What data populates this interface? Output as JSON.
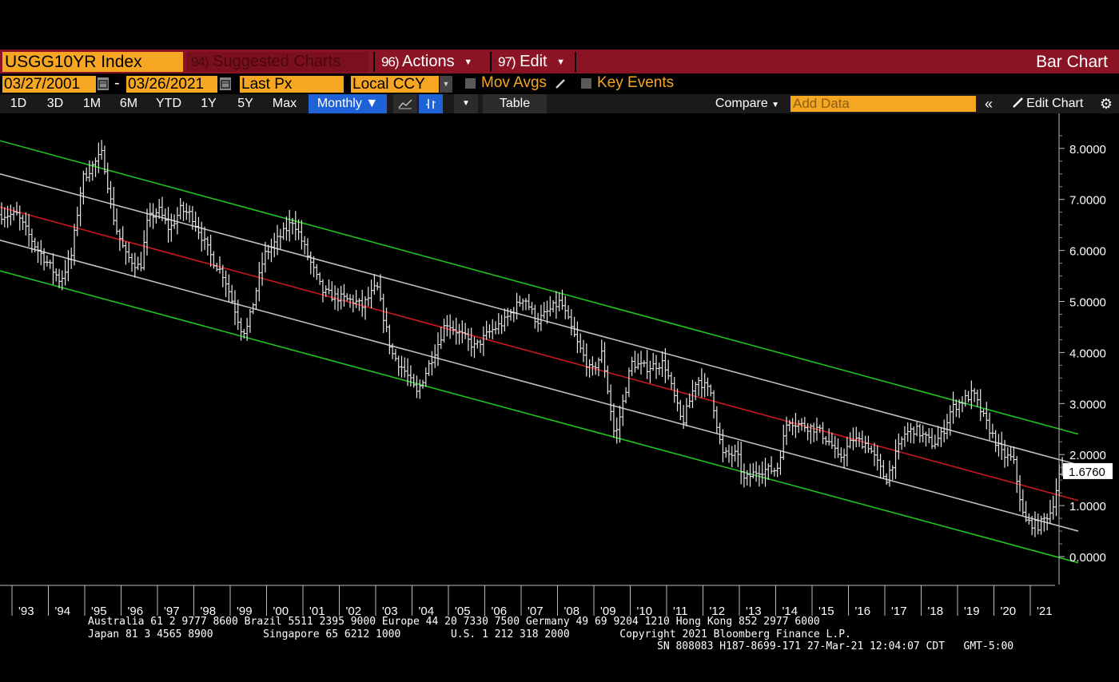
{
  "toolbar": {
    "ticker": "USGG10YR Index",
    "suggested_num": "94)",
    "suggested_label": "Suggested Charts",
    "actions_num": "96)",
    "actions_label": "Actions",
    "edit_num": "97)",
    "edit_label": "Edit",
    "chart_type": "Bar Chart"
  },
  "settings": {
    "start_date": "03/27/2001",
    "date_separator": "-",
    "end_date": "03/26/2021",
    "field": "Last Px",
    "currency": "Local CCY",
    "mov_avgs": "Mov Avgs",
    "key_events": "Key Events"
  },
  "periods": [
    "1D",
    "3D",
    "1M",
    "6M",
    "YTD",
    "1Y",
    "5Y",
    "Max"
  ],
  "frequency": "Monthly",
  "table_label": "Table",
  "compare_label": "Compare",
  "add_data_placeholder": "Add Data",
  "edit_chart_label": "Edit Chart",
  "colors": {
    "accent_orange": "#f5a623",
    "menu_red": "#8a1424",
    "active_blue": "#1f62d8",
    "channel_green": "#1fc21f",
    "regression_red": "#c8181e",
    "band_white": "#bfbfbf"
  },
  "chart_data": {
    "type": "bar",
    "y_ticks": [
      "0.0000",
      "1.0000",
      "2.0000",
      "3.0000",
      "4.0000",
      "5.0000",
      "6.0000",
      "7.0000",
      "8.0000"
    ],
    "ylim": [
      -0.35,
      8.6
    ],
    "x_labels": [
      "'93",
      "'94",
      "'95",
      "'96",
      "'97",
      "'98",
      "'99",
      "'00",
      "'01",
      "'02",
      "'03",
      "'04",
      "'05",
      "'06",
      "'07",
      "'08",
      "'09",
      "'10",
      "'11",
      "'12",
      "'13",
      "'14",
      "'15",
      "'16",
      "'17",
      "'18",
      "'19",
      "'20",
      "'21"
    ],
    "last_value": "1.6760",
    "series_anchor_years": [
      1992.5,
      1993.0,
      1993.7,
      1994.0,
      1994.3,
      1994.85,
      1995.2,
      1995.5,
      1995.9,
      1996.1,
      1996.4,
      1996.7,
      1997.0,
      1997.3,
      1997.9,
      1998.2,
      1998.7,
      1998.85,
      1999.3,
      1999.9,
      2000.1,
      2000.5,
      2000.9,
      2001.2,
      2001.8,
      2002.0,
      2002.4,
      2002.8,
      2003.2,
      2003.5,
      2004.1,
      2004.3,
      2004.8,
      2005.1,
      2005.5,
      2005.9,
      2006.45,
      2006.8,
      2007.1,
      2007.45,
      2007.9,
      2008.3,
      2008.6,
      2008.95,
      2009.4,
      2009.8,
      2010.3,
      2010.8,
      2011.2,
      2011.6,
      2011.9,
      2012.3,
      2012.5,
      2012.9,
      2013.4,
      2013.7,
      2013.95,
      2014.5,
      2014.9,
      2015.1,
      2015.5,
      2015.9,
      2016.4,
      2016.9,
      2017.2,
      2017.7,
      2017.95,
      2018.2,
      2018.8,
      2019.1,
      2019.6,
      2019.9,
      2020.2,
      2020.6,
      2020.95,
      2021.2
    ],
    "series_anchor_values": [
      6.7,
      6.1,
      5.4,
      5.9,
      7.4,
      7.9,
      6.5,
      5.9,
      5.65,
      6.6,
      6.8,
      6.4,
      6.8,
      6.7,
      5.8,
      5.5,
      4.4,
      4.5,
      5.9,
      6.4,
      6.6,
      5.9,
      5.2,
      5.1,
      5.0,
      4.9,
      5.3,
      4.0,
      3.6,
      3.2,
      4.2,
      4.6,
      4.3,
      4.1,
      4.4,
      4.6,
      5.1,
      4.6,
      4.8,
      5.0,
      4.2,
      3.6,
      4.0,
      2.3,
      3.8,
      3.7,
      3.8,
      2.6,
      3.5,
      3.2,
      2.0,
      2.0,
      1.5,
      1.7,
      1.7,
      2.7,
      2.6,
      2.5,
      2.2,
      1.9,
      2.3,
      2.2,
      1.5,
      2.4,
      2.5,
      2.2,
      2.4,
      2.9,
      3.2,
      2.7,
      2.0,
      1.9,
      0.7,
      0.6,
      0.9,
      1.68
    ],
    "regression_channel": {
      "x_range": [
        1992.0,
        2021.65
      ],
      "upper_outer": [
        8.15,
        2.4
      ],
      "upper_inner": [
        7.5,
        1.8
      ],
      "center": [
        6.85,
        1.1
      ],
      "lower_inner": [
        6.2,
        0.5
      ],
      "lower_outer": [
        5.6,
        -0.12
      ]
    }
  },
  "footer": {
    "line1": "Australia 61 2 9777 8600 Brazil 5511 2395 9000 Europe 44 20 7330 7500 Germany 49 69 9204 1210 Hong Kong 852 2977 6000",
    "line2": "Japan 81 3 4565 8900        Singapore 65 6212 1000        U.S. 1 212 318 2000        Copyright 2021 Bloomberg Finance L.P.",
    "line3": "SN 808083 H187-8699-171 27-Mar-21 12:04:07 CDT   GMT-5:00"
  }
}
